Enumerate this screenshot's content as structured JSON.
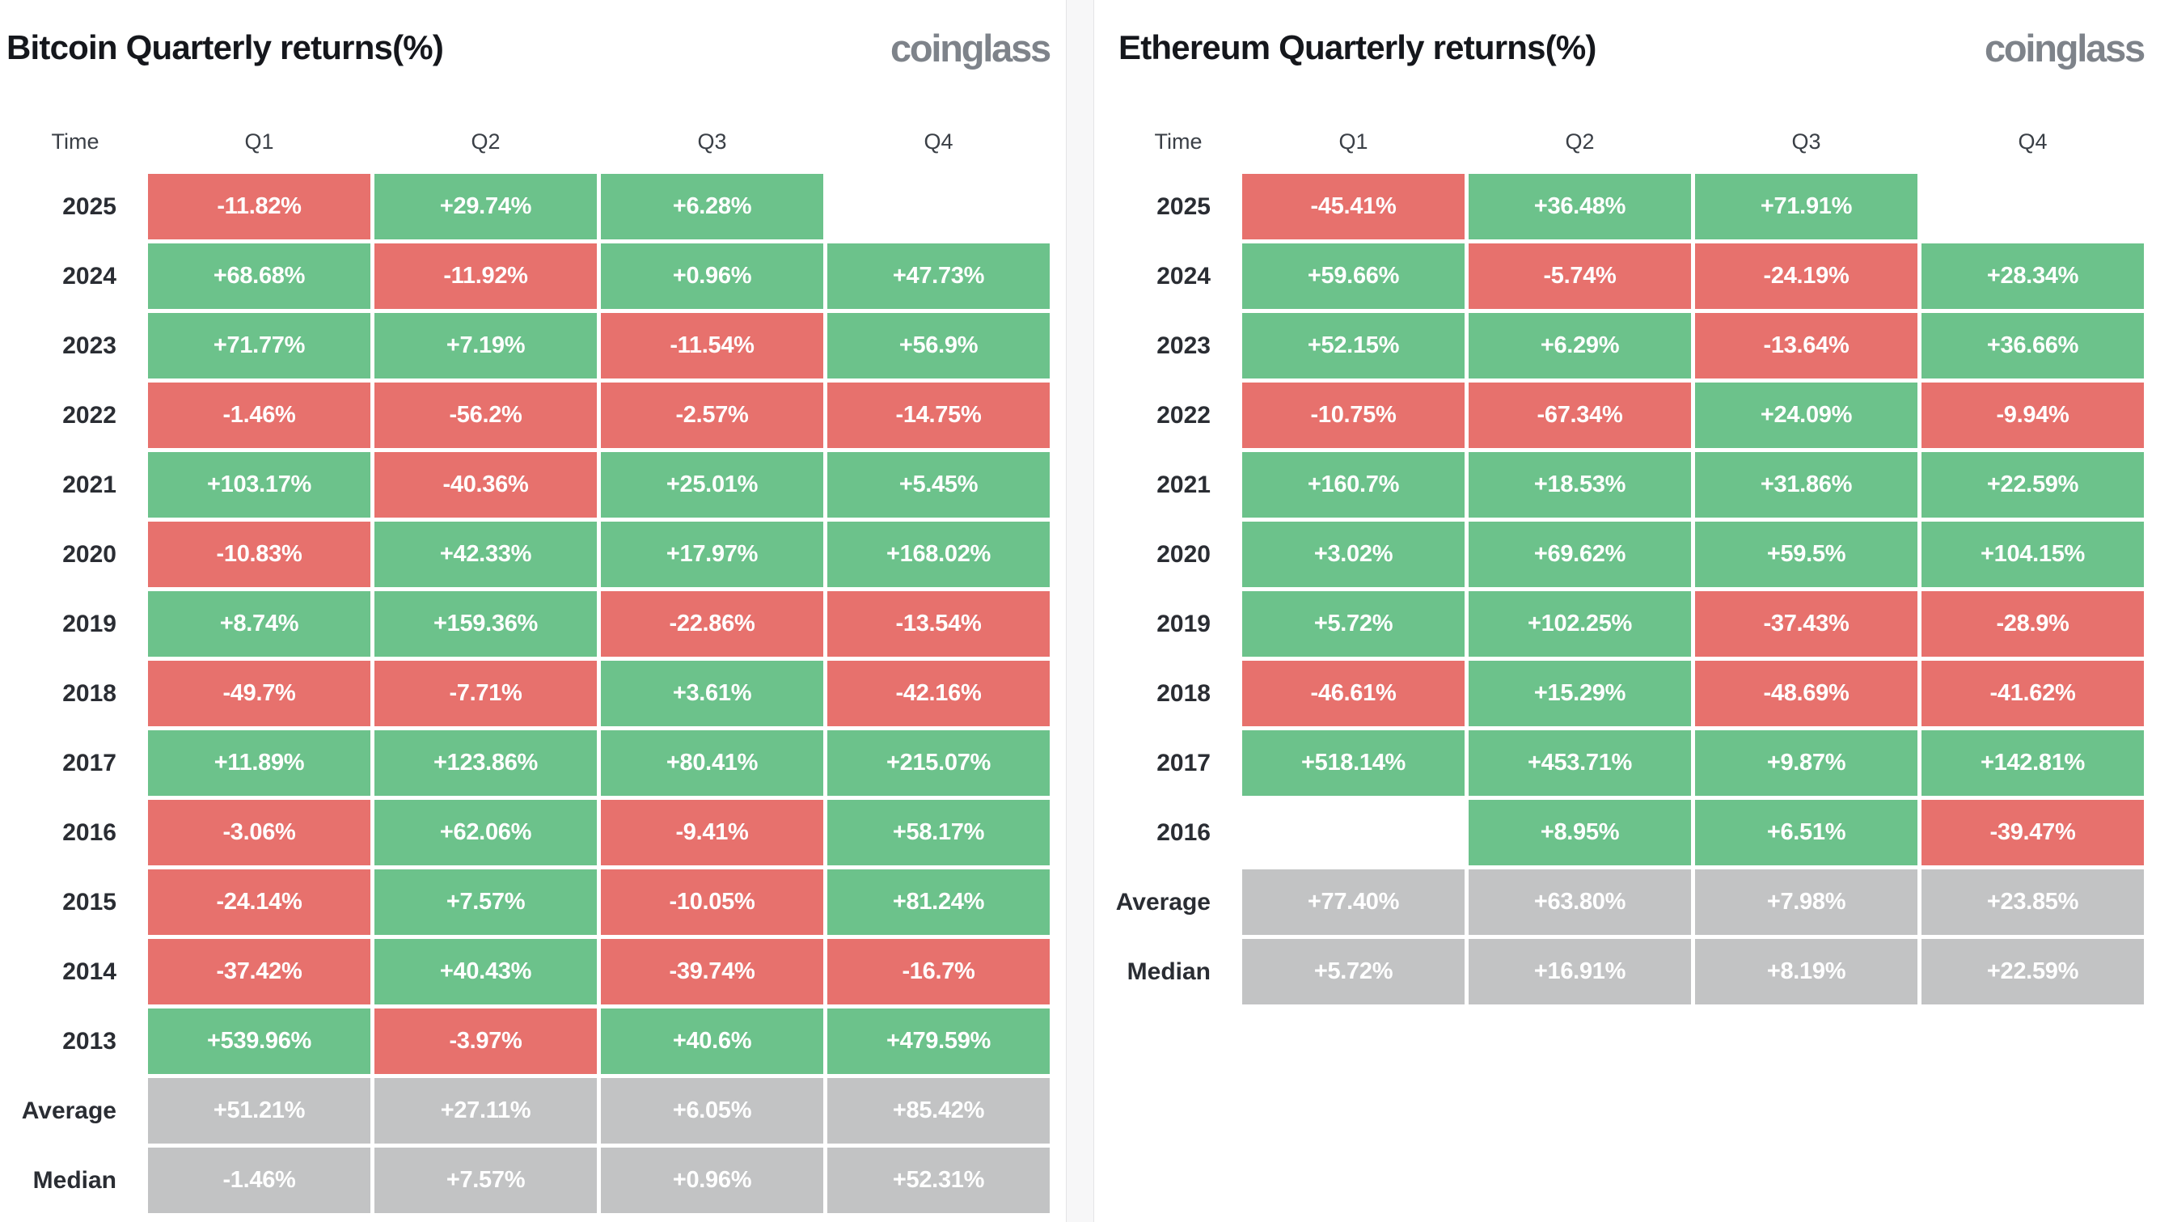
{
  "colors": {
    "positive": "#6CC28B",
    "negative": "#E7716D",
    "summary": "#C2C3C4",
    "cell_text": "#FFFFFF",
    "title": "#15171C",
    "logo": "#7E838A",
    "header_text": "#3A3F46",
    "label_text": "#2A2D33",
    "divider_bg": "#F7F7F8",
    "divider_border": "#E4E4E6",
    "panel_bg": "#FFFFFF"
  },
  "chart_data": [
    {
      "type": "table",
      "title": "Bitcoin Quarterly returns(%)",
      "brand": "coinglass",
      "columns": [
        "Time",
        "Q1",
        "Q2",
        "Q3",
        "Q4"
      ],
      "rows": [
        {
          "label": "2025",
          "type": "year",
          "values": [
            "-11.82%",
            "+29.74%",
            "+6.28%",
            ""
          ]
        },
        {
          "label": "2024",
          "type": "year",
          "values": [
            "+68.68%",
            "-11.92%",
            "+0.96%",
            "+47.73%"
          ]
        },
        {
          "label": "2023",
          "type": "year",
          "values": [
            "+71.77%",
            "+7.19%",
            "-11.54%",
            "+56.9%"
          ]
        },
        {
          "label": "2022",
          "type": "year",
          "values": [
            "-1.46%",
            "-56.2%",
            "-2.57%",
            "-14.75%"
          ]
        },
        {
          "label": "2021",
          "type": "year",
          "values": [
            "+103.17%",
            "-40.36%",
            "+25.01%",
            "+5.45%"
          ]
        },
        {
          "label": "2020",
          "type": "year",
          "values": [
            "-10.83%",
            "+42.33%",
            "+17.97%",
            "+168.02%"
          ]
        },
        {
          "label": "2019",
          "type": "year",
          "values": [
            "+8.74%",
            "+159.36%",
            "-22.86%",
            "-13.54%"
          ]
        },
        {
          "label": "2018",
          "type": "year",
          "values": [
            "-49.7%",
            "-7.71%",
            "+3.61%",
            "-42.16%"
          ]
        },
        {
          "label": "2017",
          "type": "year",
          "values": [
            "+11.89%",
            "+123.86%",
            "+80.41%",
            "+215.07%"
          ]
        },
        {
          "label": "2016",
          "type": "year",
          "values": [
            "-3.06%",
            "+62.06%",
            "-9.41%",
            "+58.17%"
          ]
        },
        {
          "label": "2015",
          "type": "year",
          "values": [
            "-24.14%",
            "+7.57%",
            "-10.05%",
            "+81.24%"
          ]
        },
        {
          "label": "2014",
          "type": "year",
          "values": [
            "-37.42%",
            "+40.43%",
            "-39.74%",
            "-16.7%"
          ]
        },
        {
          "label": "2013",
          "type": "year",
          "values": [
            "+539.96%",
            "-3.97%",
            "+40.6%",
            "+479.59%"
          ]
        },
        {
          "label": "Average",
          "type": "summary",
          "values": [
            "+51.21%",
            "+27.11%",
            "+6.05%",
            "+85.42%"
          ]
        },
        {
          "label": "Median",
          "type": "summary",
          "values": [
            "-1.46%",
            "+7.57%",
            "+0.96%",
            "+52.31%"
          ]
        }
      ]
    },
    {
      "type": "table",
      "title": "Ethereum Quarterly returns(%)",
      "brand": "coinglass",
      "columns": [
        "Time",
        "Q1",
        "Q2",
        "Q3",
        "Q4"
      ],
      "rows": [
        {
          "label": "2025",
          "type": "year",
          "values": [
            "-45.41%",
            "+36.48%",
            "+71.91%",
            ""
          ]
        },
        {
          "label": "2024",
          "type": "year",
          "values": [
            "+59.66%",
            "-5.74%",
            "-24.19%",
            "+28.34%"
          ]
        },
        {
          "label": "2023",
          "type": "year",
          "values": [
            "+52.15%",
            "+6.29%",
            "-13.64%",
            "+36.66%"
          ]
        },
        {
          "label": "2022",
          "type": "year",
          "values": [
            "-10.75%",
            "-67.34%",
            "+24.09%",
            "-9.94%"
          ]
        },
        {
          "label": "2021",
          "type": "year",
          "values": [
            "+160.7%",
            "+18.53%",
            "+31.86%",
            "+22.59%"
          ]
        },
        {
          "label": "2020",
          "type": "year",
          "values": [
            "+3.02%",
            "+69.62%",
            "+59.5%",
            "+104.15%"
          ]
        },
        {
          "label": "2019",
          "type": "year",
          "values": [
            "+5.72%",
            "+102.25%",
            "-37.43%",
            "-28.9%"
          ]
        },
        {
          "label": "2018",
          "type": "year",
          "values": [
            "-46.61%",
            "+15.29%",
            "-48.69%",
            "-41.62%"
          ]
        },
        {
          "label": "2017",
          "type": "year",
          "values": [
            "+518.14%",
            "+453.71%",
            "+9.87%",
            "+142.81%"
          ]
        },
        {
          "label": "2016",
          "type": "year",
          "values": [
            "",
            "+8.95%",
            "+6.51%",
            "-39.47%"
          ]
        },
        {
          "label": "Average",
          "type": "summary",
          "values": [
            "+77.40%",
            "+63.80%",
            "+7.98%",
            "+23.85%"
          ]
        },
        {
          "label": "Median",
          "type": "summary",
          "values": [
            "+5.72%",
            "+16.91%",
            "+8.19%",
            "+22.59%"
          ]
        }
      ]
    }
  ]
}
